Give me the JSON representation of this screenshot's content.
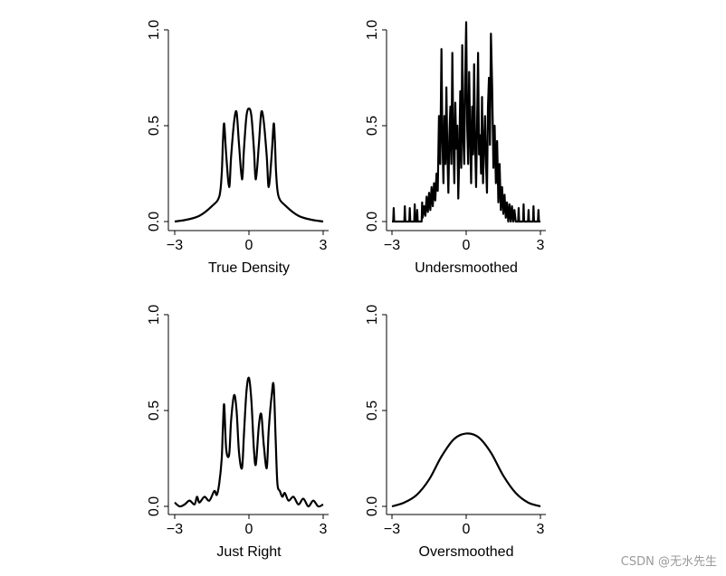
{
  "watermark": "CSDN @无水先生",
  "chart_data": [
    {
      "type": "line",
      "title": "True Density",
      "xlim": [
        -3.2,
        3.2
      ],
      "ylim": [
        0,
        1.05
      ],
      "xticks": [
        "−3",
        "0",
        "3"
      ],
      "yticks": [
        "0.0",
        "0.5",
        "1.0"
      ],
      "peaks": [
        {
          "x": -1.0,
          "y": 0.51
        },
        {
          "x": -0.5,
          "y": 0.57
        },
        {
          "x": 0.0,
          "y": 0.59
        },
        {
          "x": 0.5,
          "y": 0.57
        },
        {
          "x": 1.0,
          "y": 0.51
        }
      ],
      "series": [
        {
          "x": [
            -3.0,
            -2.5,
            -2.0,
            -1.5,
            -1.2,
            -1.1,
            -1.05,
            -1.0,
            -0.92,
            -0.8,
            -0.72,
            -0.6,
            -0.5,
            -0.4,
            -0.28,
            -0.2,
            -0.1,
            0.0,
            0.1,
            0.2,
            0.28,
            0.4,
            0.5,
            0.6,
            0.72,
            0.8,
            0.92,
            1.0,
            1.05,
            1.1,
            1.2,
            1.5,
            2.0,
            2.5,
            3.0
          ],
          "values": [
            0.0,
            0.01,
            0.03,
            0.08,
            0.13,
            0.25,
            0.42,
            0.51,
            0.35,
            0.18,
            0.34,
            0.52,
            0.57,
            0.4,
            0.22,
            0.38,
            0.55,
            0.59,
            0.55,
            0.38,
            0.22,
            0.4,
            0.57,
            0.52,
            0.34,
            0.18,
            0.35,
            0.51,
            0.42,
            0.25,
            0.13,
            0.08,
            0.03,
            0.01,
            0.0
          ]
        }
      ]
    },
    {
      "type": "line",
      "title": "Undersmoothed",
      "xlim": [
        -3.2,
        3.2
      ],
      "ylim": [
        0,
        1.05
      ],
      "xticks": [
        "−3",
        "0",
        "3"
      ],
      "yticks": [
        "0.0",
        "0.5",
        "1.0"
      ],
      "series": [
        {
          "x": [
            -3.0,
            -2.95,
            -2.93,
            -2.91,
            -2.5,
            -2.48,
            -2.46,
            -2.3,
            -2.28,
            -2.26,
            -2.1,
            -2.08,
            -2.06,
            -2.0,
            -1.98,
            -1.96,
            -1.8,
            -1.78,
            -1.76,
            -1.7,
            -1.65,
            -1.6,
            -1.55,
            -1.5,
            -1.45,
            -1.4,
            -1.35,
            -1.3,
            -1.25,
            -1.2,
            -1.15,
            -1.1,
            -1.05,
            -1.0,
            -0.96,
            -0.92,
            -0.88,
            -0.84,
            -0.8,
            -0.76,
            -0.72,
            -0.68,
            -0.64,
            -0.6,
            -0.56,
            -0.52,
            -0.48,
            -0.44,
            -0.4,
            -0.36,
            -0.32,
            -0.28,
            -0.24,
            -0.2,
            -0.16,
            -0.12,
            -0.08,
            -0.04,
            0.0,
            0.04,
            0.08,
            0.12,
            0.16,
            0.2,
            0.24,
            0.28,
            0.32,
            0.36,
            0.4,
            0.44,
            0.48,
            0.52,
            0.56,
            0.6,
            0.64,
            0.68,
            0.72,
            0.76,
            0.8,
            0.84,
            0.88,
            0.92,
            0.96,
            1.0,
            1.05,
            1.1,
            1.15,
            1.2,
            1.25,
            1.3,
            1.35,
            1.4,
            1.45,
            1.5,
            1.55,
            1.6,
            1.65,
            1.7,
            1.75,
            1.8,
            1.85,
            1.9,
            1.95,
            2.0,
            2.1,
            2.12,
            2.14,
            2.3,
            2.32,
            2.34,
            2.5,
            2.52,
            2.54,
            2.7,
            2.72,
            2.74,
            2.9,
            2.92,
            2.94,
            3.0
          ],
          "values": [
            0.0,
            0.0,
            0.07,
            0.0,
            0.0,
            0.08,
            0.0,
            0.0,
            0.07,
            0.0,
            0.0,
            0.09,
            0.0,
            0.0,
            0.06,
            0.0,
            0.0,
            0.1,
            0.02,
            0.08,
            0.03,
            0.13,
            0.05,
            0.15,
            0.06,
            0.18,
            0.08,
            0.2,
            0.11,
            0.25,
            0.16,
            0.55,
            0.3,
            0.9,
            0.42,
            0.2,
            0.55,
            0.3,
            0.7,
            0.35,
            0.15,
            0.45,
            0.6,
            0.3,
            0.88,
            0.42,
            0.2,
            0.62,
            0.38,
            0.5,
            0.12,
            0.35,
            0.68,
            0.28,
            0.92,
            0.45,
            0.3,
            0.75,
            1.04,
            0.5,
            0.3,
            0.78,
            0.45,
            0.2,
            0.6,
            0.35,
            0.82,
            0.4,
            0.18,
            0.5,
            0.88,
            0.35,
            0.45,
            0.25,
            0.65,
            0.2,
            0.4,
            0.55,
            0.3,
            0.15,
            0.6,
            0.75,
            0.4,
            0.98,
            0.7,
            0.28,
            0.5,
            0.2,
            0.42,
            0.1,
            0.3,
            0.06,
            0.18,
            0.04,
            0.14,
            0.02,
            0.1,
            0.0,
            0.09,
            0.0,
            0.08,
            0.0,
            0.06,
            0.0,
            0.0,
            0.07,
            0.0,
            0.0,
            0.09,
            0.0,
            0.0,
            0.06,
            0.0,
            0.0,
            0.08,
            0.0,
            0.0,
            0.06,
            0.0,
            0.0
          ]
        }
      ]
    },
    {
      "type": "line",
      "title": "Just Right",
      "xlim": [
        -3.2,
        3.2
      ],
      "ylim": [
        0,
        1.05
      ],
      "xticks": [
        "−3",
        "0",
        "3"
      ],
      "yticks": [
        "0.0",
        "0.5",
        "1.0"
      ],
      "series": [
        {
          "x": [
            -3.0,
            -2.8,
            -2.6,
            -2.4,
            -2.2,
            -2.1,
            -2.0,
            -1.8,
            -1.6,
            -1.4,
            -1.3,
            -1.2,
            -1.1,
            -1.05,
            -1.0,
            -0.92,
            -0.8,
            -0.72,
            -0.6,
            -0.5,
            -0.4,
            -0.28,
            -0.2,
            -0.1,
            0.0,
            0.1,
            0.2,
            0.28,
            0.4,
            0.5,
            0.6,
            0.72,
            0.8,
            0.92,
            1.0,
            1.08,
            1.15,
            1.25,
            1.35,
            1.45,
            1.6,
            1.8,
            2.0,
            2.2,
            2.4,
            2.6,
            2.8,
            3.0
          ],
          "values": [
            0.02,
            0.0,
            0.01,
            0.03,
            0.01,
            0.05,
            0.02,
            0.05,
            0.03,
            0.08,
            0.06,
            0.12,
            0.25,
            0.42,
            0.53,
            0.3,
            0.27,
            0.45,
            0.58,
            0.5,
            0.28,
            0.2,
            0.38,
            0.6,
            0.67,
            0.55,
            0.3,
            0.22,
            0.42,
            0.48,
            0.32,
            0.2,
            0.4,
            0.58,
            0.63,
            0.35,
            0.12,
            0.08,
            0.05,
            0.07,
            0.03,
            0.05,
            0.01,
            0.04,
            0.0,
            0.03,
            0.0,
            0.01
          ]
        }
      ]
    },
    {
      "type": "line",
      "title": "Oversmoothed",
      "xlim": [
        -3.2,
        3.2
      ],
      "ylim": [
        0,
        1.05
      ],
      "xticks": [
        "−3",
        "0",
        "3"
      ],
      "yticks": [
        "0.0",
        "0.5",
        "1.0"
      ],
      "series": [
        {
          "x": [
            -3.0,
            -2.5,
            -2.0,
            -1.5,
            -1.0,
            -0.5,
            0.0,
            0.5,
            1.0,
            1.5,
            2.0,
            2.5,
            3.0
          ],
          "values": [
            0.0,
            0.02,
            0.06,
            0.14,
            0.26,
            0.35,
            0.38,
            0.36,
            0.28,
            0.16,
            0.07,
            0.02,
            0.0
          ]
        }
      ]
    }
  ]
}
